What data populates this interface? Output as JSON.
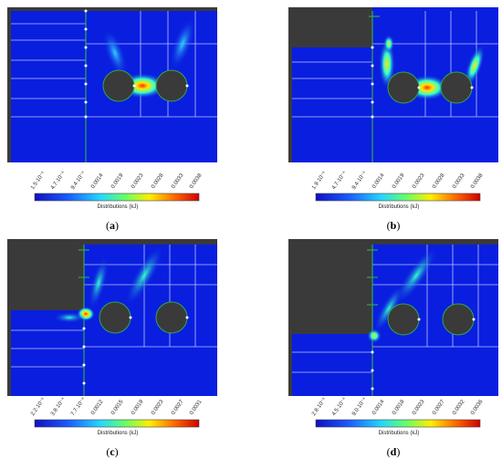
{
  "panels": [
    {
      "id": "a",
      "caption_letter": "a",
      "colorbar": {
        "ticks": [
          "1.5·10⁻⁵",
          "4.7·10⁻⁴",
          "9.4·10⁻⁴",
          "0.0014",
          "0.0019",
          "0.0023",
          "0.0028",
          "0.0033",
          "0.0038"
        ],
        "unit_label": "Distributions (kJ)"
      },
      "variant": "a"
    },
    {
      "id": "b",
      "caption_letter": "b",
      "colorbar": {
        "ticks": [
          "1.9·10⁻⁵",
          "4.7·10⁻⁴",
          "9.4·10⁻⁴",
          "0.0014",
          "0.0019",
          "0.0023",
          "0.0028",
          "0.0033",
          "0.0038"
        ],
        "unit_label": "Distributions (kJ)"
      },
      "variant": "b"
    },
    {
      "id": "c",
      "caption_letter": "c",
      "colorbar": {
        "ticks": [
          "2.2·10⁻⁵",
          "3.8·10⁻⁴",
          "7.7·10⁻⁴",
          "0.0012",
          "0.0015",
          "0.0019",
          "0.0023",
          "0.0027",
          "0.0031"
        ],
        "unit_label": "Distributions (kJ)"
      },
      "variant": "c"
    },
    {
      "id": "d",
      "caption_letter": "d",
      "colorbar": {
        "ticks": [
          "2.8·10⁻⁵",
          "4.5·10⁻⁴",
          "9.0·10⁻⁴",
          "0.0014",
          "0.0018",
          "0.0023",
          "0.0027",
          "0.0032",
          "0.0036"
        ],
        "unit_label": "Distributions (kJ)"
      },
      "variant": "d"
    }
  ],
  "colors": {
    "field": "#0a1ee0",
    "solid": "#3a3a3a",
    "grid": "#b8c4ff",
    "boundary": "#2fa84a",
    "hot": "#ff2a00",
    "warm": "#ffe600",
    "cool": "#33ffd0"
  }
}
